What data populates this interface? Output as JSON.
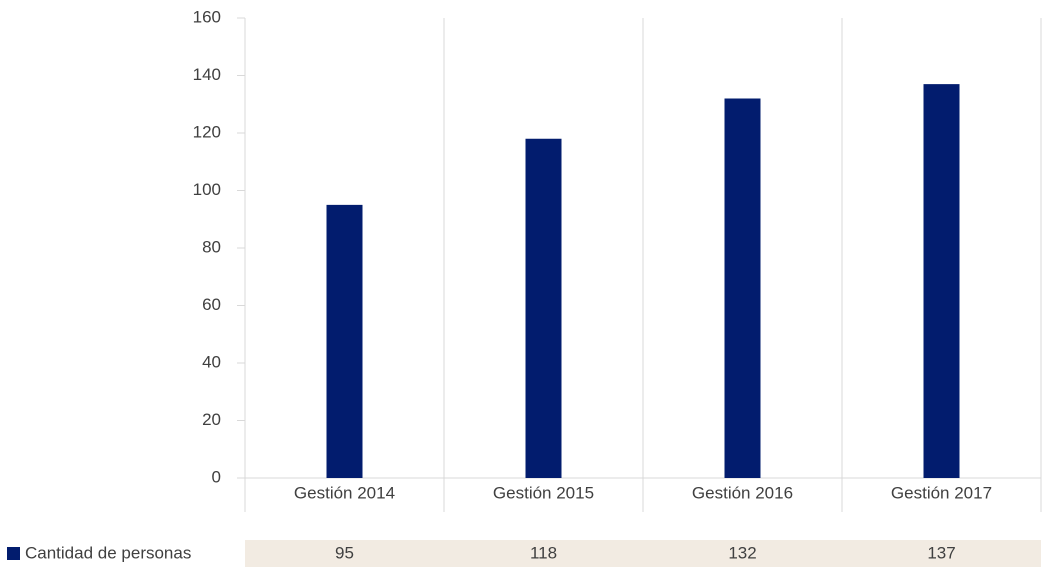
{
  "chart_data": {
    "type": "bar",
    "categories": [
      "Gestión 2014",
      "Gestión 2015",
      "Gestión 2016",
      "Gestión 2017"
    ],
    "series": [
      {
        "name": "Cantidad de personas",
        "color": "#021c6e",
        "values": [
          95,
          118,
          132,
          137
        ]
      }
    ],
    "ylim": [
      0,
      160
    ],
    "yticks": [
      0,
      20,
      40,
      60,
      80,
      100,
      120,
      140,
      160
    ],
    "grid": false,
    "data_table": true
  }
}
